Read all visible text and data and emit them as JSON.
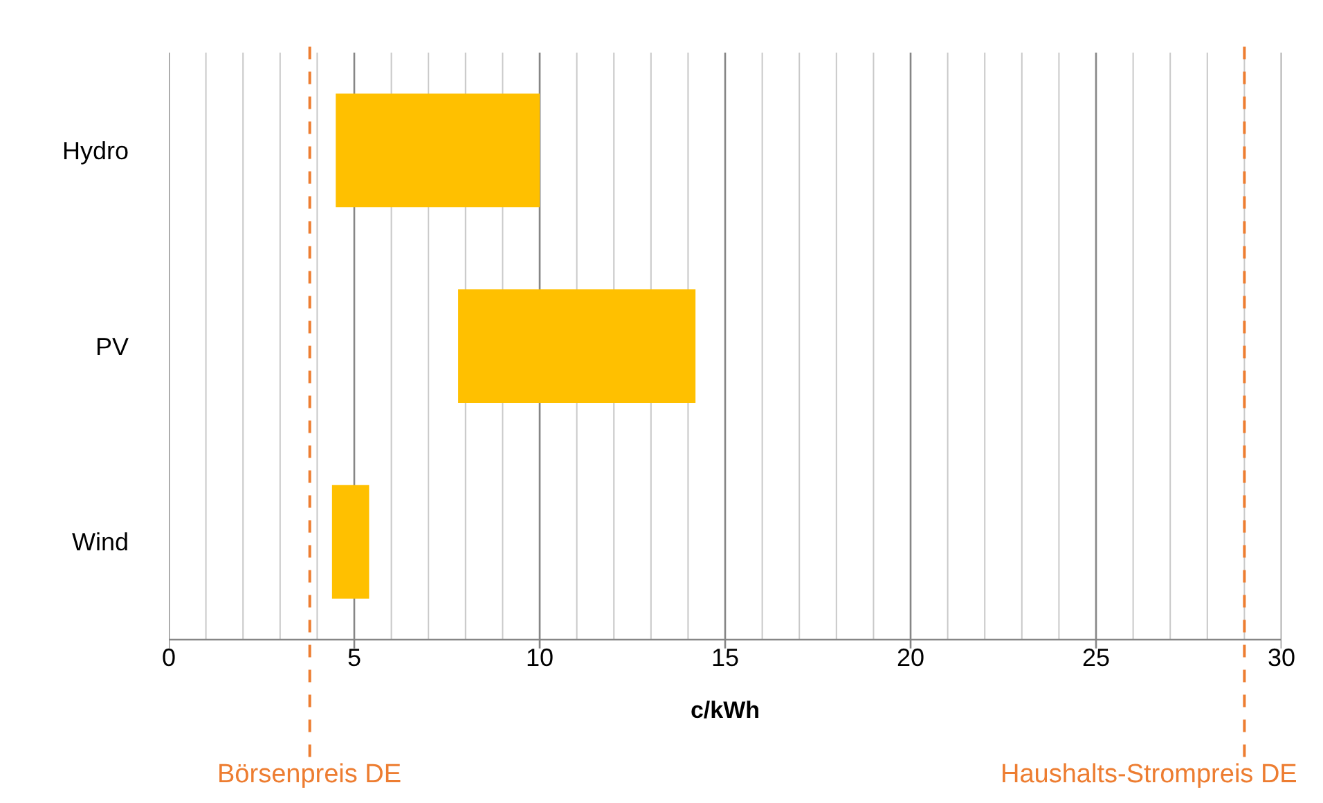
{
  "chart_data": {
    "type": "bar",
    "orientation": "horizontal",
    "categories": [
      "Hydro",
      "PV",
      "Wind"
    ],
    "base": [
      4.5,
      7.8,
      4.4
    ],
    "values": [
      5.5,
      6.4,
      1.0
    ],
    "color": "#ffc000",
    "xlabel": "c/kWh",
    "xlim": [
      0,
      30
    ],
    "xticks": [
      0,
      {
        "value": 1,
        "label": null
      },
      {
        "value": 2,
        "label": null
      },
      {
        "value": 3,
        "label": null
      },
      {
        "value": 4,
        "label": null
      },
      5,
      {
        "value": 6,
        "label": null
      },
      {
        "value": 7,
        "label": null
      },
      {
        "value": 8,
        "label": null
      },
      {
        "value": 9,
        "label": null
      },
      10,
      {
        "value": 11,
        "label": null
      },
      {
        "value": 12,
        "label": null
      },
      {
        "value": 13,
        "label": null
      },
      {
        "value": 14,
        "label": null
      },
      15,
      {
        "value": 16,
        "label": null
      },
      {
        "value": 17,
        "label": null
      },
      {
        "value": 18,
        "label": null
      },
      {
        "value": 19,
        "label": null
      },
      20,
      {
        "value": 21,
        "label": null
      },
      {
        "value": 22,
        "label": null
      },
      {
        "value": 23,
        "label": null
      },
      {
        "value": 24,
        "label": null
      },
      25,
      {
        "value": 26,
        "label": null
      },
      {
        "value": 27,
        "label": null
      },
      {
        "value": 28,
        "label": null
      },
      {
        "value": 29,
        "label": null
      },
      30
    ],
    "grid": "x",
    "ref_lines": [
      {
        "axis": "x",
        "value": 3.8,
        "label": "Börsenpreis DE",
        "color": "#ed7d31",
        "line_style": "dashed"
      },
      {
        "axis": "x",
        "value": 29.0,
        "label": "Haushalts-Strompreis DE",
        "color": "#ed7d31",
        "line_style": "dashed"
      }
    ]
  }
}
